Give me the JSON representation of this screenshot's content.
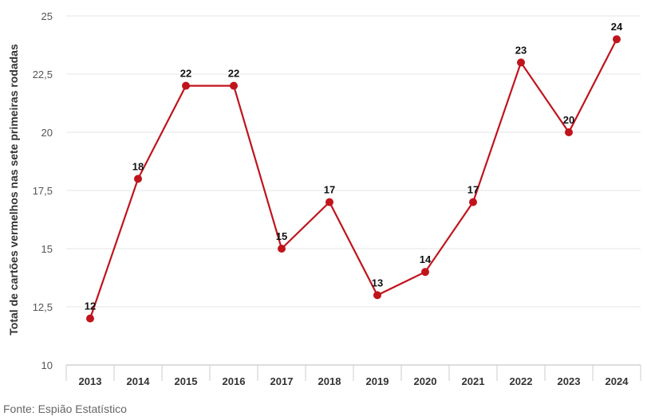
{
  "chart_data": {
    "type": "line",
    "categories": [
      "2013",
      "2014",
      "2015",
      "2016",
      "2017",
      "2018",
      "2019",
      "2020",
      "2021",
      "2022",
      "2023",
      "2024"
    ],
    "series": [
      {
        "values": [
          12,
          18,
          22,
          22,
          15,
          17,
          13,
          14,
          17,
          23,
          20,
          24
        ]
      }
    ],
    "ylabel": "Total de cartões vermelhos nas sete primeiras rodadas",
    "ylim": [
      10,
      25
    ],
    "yticks": [
      "10",
      "12,5",
      "15",
      "17,5",
      "20",
      "22,5",
      "25"
    ],
    "data_labels": [
      "12",
      "18",
      "22",
      "22",
      "15",
      "17",
      "13",
      "14",
      "17",
      "23",
      "20",
      "24"
    ],
    "grid": true,
    "line_color": "#c0141c",
    "grid_color": "#e6e6e6"
  },
  "source": "Fonte: Espião Estatístico"
}
